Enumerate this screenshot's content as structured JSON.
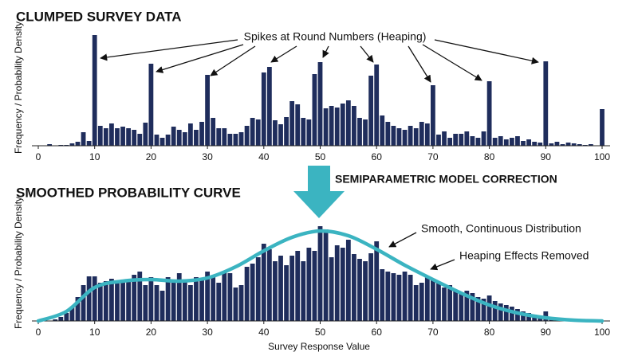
{
  "chart_data": [
    {
      "type": "bar",
      "title": "CLUMPED SURVEY DATA",
      "y_label": "Frequency / Probability Density",
      "color": "#1f2d5c",
      "annotations": [
        "Spikes at Round Numbers (Heaping)"
      ],
      "x": [
        1,
        2,
        3,
        4,
        5,
        6,
        7,
        8,
        9,
        10,
        11,
        12,
        13,
        14,
        15,
        16,
        17,
        18,
        19,
        20,
        21,
        22,
        23,
        24,
        25,
        26,
        27,
        28,
        29,
        30,
        31,
        32,
        33,
        34,
        35,
        36,
        37,
        38,
        39,
        40,
        41,
        42,
        43,
        44,
        45,
        46,
        47,
        48,
        49,
        50,
        51,
        52,
        53,
        54,
        55,
        56,
        57,
        58,
        59,
        60,
        61,
        62,
        63,
        64,
        65,
        66,
        67,
        68,
        69,
        70,
        71,
        72,
        73,
        74,
        75,
        76,
        77,
        78,
        79,
        80,
        81,
        82,
        83,
        84,
        85,
        86,
        87,
        88,
        89,
        90,
        91,
        92,
        93,
        94,
        95,
        96,
        97,
        98,
        99,
        100
      ],
      "values": [
        0,
        2,
        0,
        1,
        1,
        3,
        5,
        17,
        6,
        139,
        25,
        22,
        28,
        22,
        24,
        22,
        20,
        15,
        29,
        103,
        14,
        10,
        14,
        24,
        20,
        17,
        28,
        20,
        30,
        89,
        35,
        22,
        22,
        15,
        15,
        17,
        25,
        35,
        33,
        92,
        99,
        32,
        27,
        36,
        56,
        52,
        35,
        33,
        90,
        105,
        47,
        50,
        48,
        53,
        57,
        50,
        35,
        33,
        88,
        102,
        38,
        30,
        25,
        22,
        20,
        25,
        22,
        30,
        28,
        76,
        14,
        18,
        10,
        15,
        15,
        18,
        12,
        10,
        18,
        81,
        10,
        12,
        8,
        10,
        12,
        6,
        8,
        5,
        4,
        106,
        3,
        5,
        2,
        4,
        3,
        2,
        1,
        2,
        0,
        46
      ],
      "xlim": [
        0,
        100
      ],
      "xticks": [
        0,
        10,
        20,
        30,
        40,
        50,
        60,
        70,
        80,
        90,
        100
      ],
      "ylim": [
        0,
        140
      ]
    },
    {
      "type": "bar",
      "title": "SMOOTHED PROBABILITY CURVE",
      "y_label": "Frequency / Probability Density",
      "x_label": "Survey Response Value",
      "color": "#1f2d5c",
      "annotations": [
        "Smooth, Continuous Distribution",
        "Heaping Effects Removed"
      ],
      "x": [
        1,
        2,
        3,
        4,
        5,
        6,
        7,
        8,
        9,
        10,
        11,
        12,
        13,
        14,
        15,
        16,
        17,
        18,
        19,
        20,
        21,
        22,
        23,
        24,
        25,
        26,
        27,
        28,
        29,
        30,
        31,
        32,
        33,
        34,
        35,
        36,
        37,
        38,
        39,
        40,
        41,
        42,
        43,
        44,
        45,
        46,
        47,
        48,
        49,
        50,
        51,
        52,
        53,
        54,
        55,
        56,
        57,
        58,
        59,
        60,
        61,
        62,
        63,
        64,
        65,
        66,
        67,
        68,
        69,
        70,
        71,
        72,
        73,
        74,
        75,
        76,
        77,
        78,
        79,
        80,
        81,
        82,
        83,
        84,
        85,
        86,
        87,
        88,
        89,
        90,
        91,
        92,
        93,
        94,
        95,
        96,
        97,
        98,
        99,
        100
      ],
      "values": [
        0,
        0,
        2,
        5,
        10,
        18,
        30,
        45,
        56,
        56,
        48,
        50,
        53,
        50,
        50,
        52,
        58,
        62,
        45,
        55,
        45,
        38,
        55,
        48,
        60,
        50,
        45,
        55,
        52,
        62,
        55,
        48,
        62,
        60,
        42,
        45,
        68,
        72,
        80,
        97,
        90,
        75,
        82,
        70,
        82,
        88,
        75,
        92,
        88,
        119,
        115,
        80,
        95,
        92,
        102,
        84,
        78,
        75,
        85,
        100,
        65,
        62,
        60,
        58,
        62,
        58,
        45,
        48,
        55,
        52,
        48,
        42,
        45,
        38,
        35,
        38,
        35,
        30,
        28,
        32,
        25,
        22,
        20,
        18,
        15,
        12,
        10,
        8,
        6,
        12,
        4,
        3,
        2,
        1,
        1,
        0,
        0,
        0,
        0,
        0
      ],
      "curve": {
        "color": "#3bb4c1",
        "x": [
          0,
          5,
          10,
          15,
          20,
          25,
          30,
          35,
          40,
          45,
          50,
          55,
          60,
          65,
          70,
          75,
          80,
          85,
          90,
          95,
          100
        ],
        "values": [
          0,
          12,
          42,
          50,
          52,
          50,
          54,
          68,
          88,
          105,
          113,
          107,
          90,
          70,
          52,
          35,
          20,
          10,
          4,
          1,
          0
        ]
      },
      "xlim": [
        0,
        100
      ],
      "xticks": [
        0,
        10,
        20,
        30,
        40,
        50,
        60,
        70,
        80,
        90,
        100
      ],
      "ylim": [
        0,
        140
      ]
    }
  ],
  "transition": {
    "label": "SEMIPARAMETRIC MODEL CORRECTION",
    "color": "#3bb4c1"
  }
}
